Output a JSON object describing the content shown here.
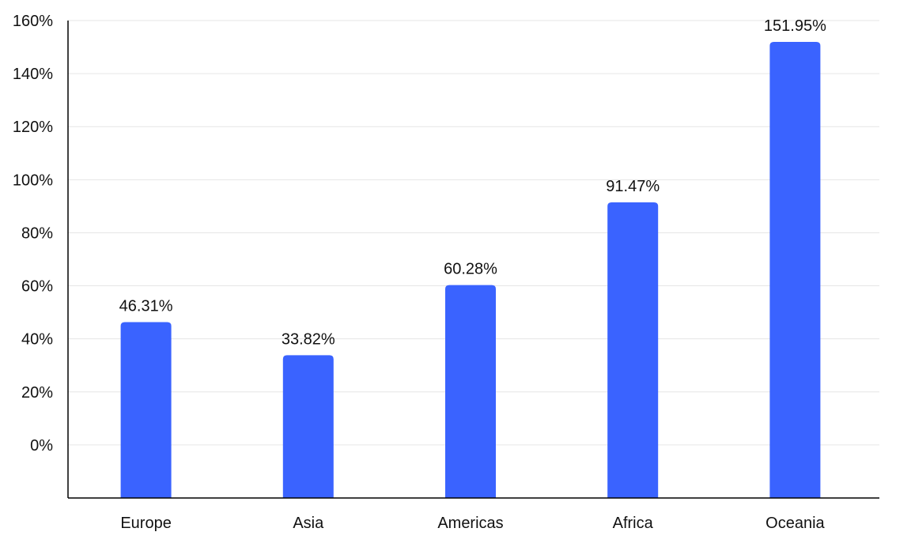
{
  "chart_data": {
    "type": "bar",
    "categories": [
      "Europe",
      "Asia",
      "Americas",
      "Africa",
      "Oceania"
    ],
    "values": [
      46.31,
      33.82,
      60.28,
      91.47,
      151.95
    ],
    "data_labels": [
      "46.31%",
      "33.82%",
      "60.28%",
      "91.47%",
      "151.95%"
    ],
    "y_ticks": [
      0,
      20,
      40,
      60,
      80,
      100,
      120,
      140,
      160
    ],
    "y_tick_labels": [
      "0%",
      "20%",
      "40%",
      "60%",
      "80%",
      "100%",
      "120%",
      "140%",
      "160%"
    ],
    "ylim": [
      -20,
      160
    ],
    "grid": true,
    "bar_color": "#3a63ff",
    "title": "",
    "xlabel": "",
    "ylabel": ""
  }
}
